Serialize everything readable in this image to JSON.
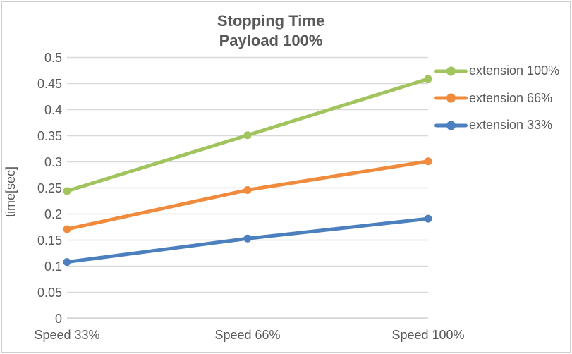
{
  "chart_data": {
    "type": "line",
    "title": "Stopping Time",
    "subtitle": "Payload 100%",
    "ylabel": "time[sec]",
    "xlabel": "",
    "categories": [
      "Speed 33%",
      "Speed 66%",
      "Speed 100%"
    ],
    "series": [
      {
        "name": "extension 100%",
        "color": "#a1c45e",
        "values": [
          0.244,
          0.351,
          0.459
        ]
      },
      {
        "name": "extension 66%",
        "color": "#f08a3c",
        "values": [
          0.171,
          0.246,
          0.301
        ]
      },
      {
        "name": "extension 33%",
        "color": "#4c7fbe",
        "values": [
          0.108,
          0.153,
          0.191
        ]
      }
    ],
    "y_axis": {
      "min": 0,
      "max": 0.5,
      "step": 0.05,
      "tick_labels": [
        "0",
        "0.05",
        "0.1",
        "0.15",
        "0.2",
        "0.25",
        "0.3",
        "0.35",
        "0.4",
        "0.45",
        "0.5"
      ]
    },
    "grid": true,
    "legend_position": "right",
    "styles": {
      "text_color": "#595959",
      "gridline_color": "#d9d9d9",
      "axis_line_color": "#d6d6d6",
      "background": "#ffffff"
    }
  }
}
